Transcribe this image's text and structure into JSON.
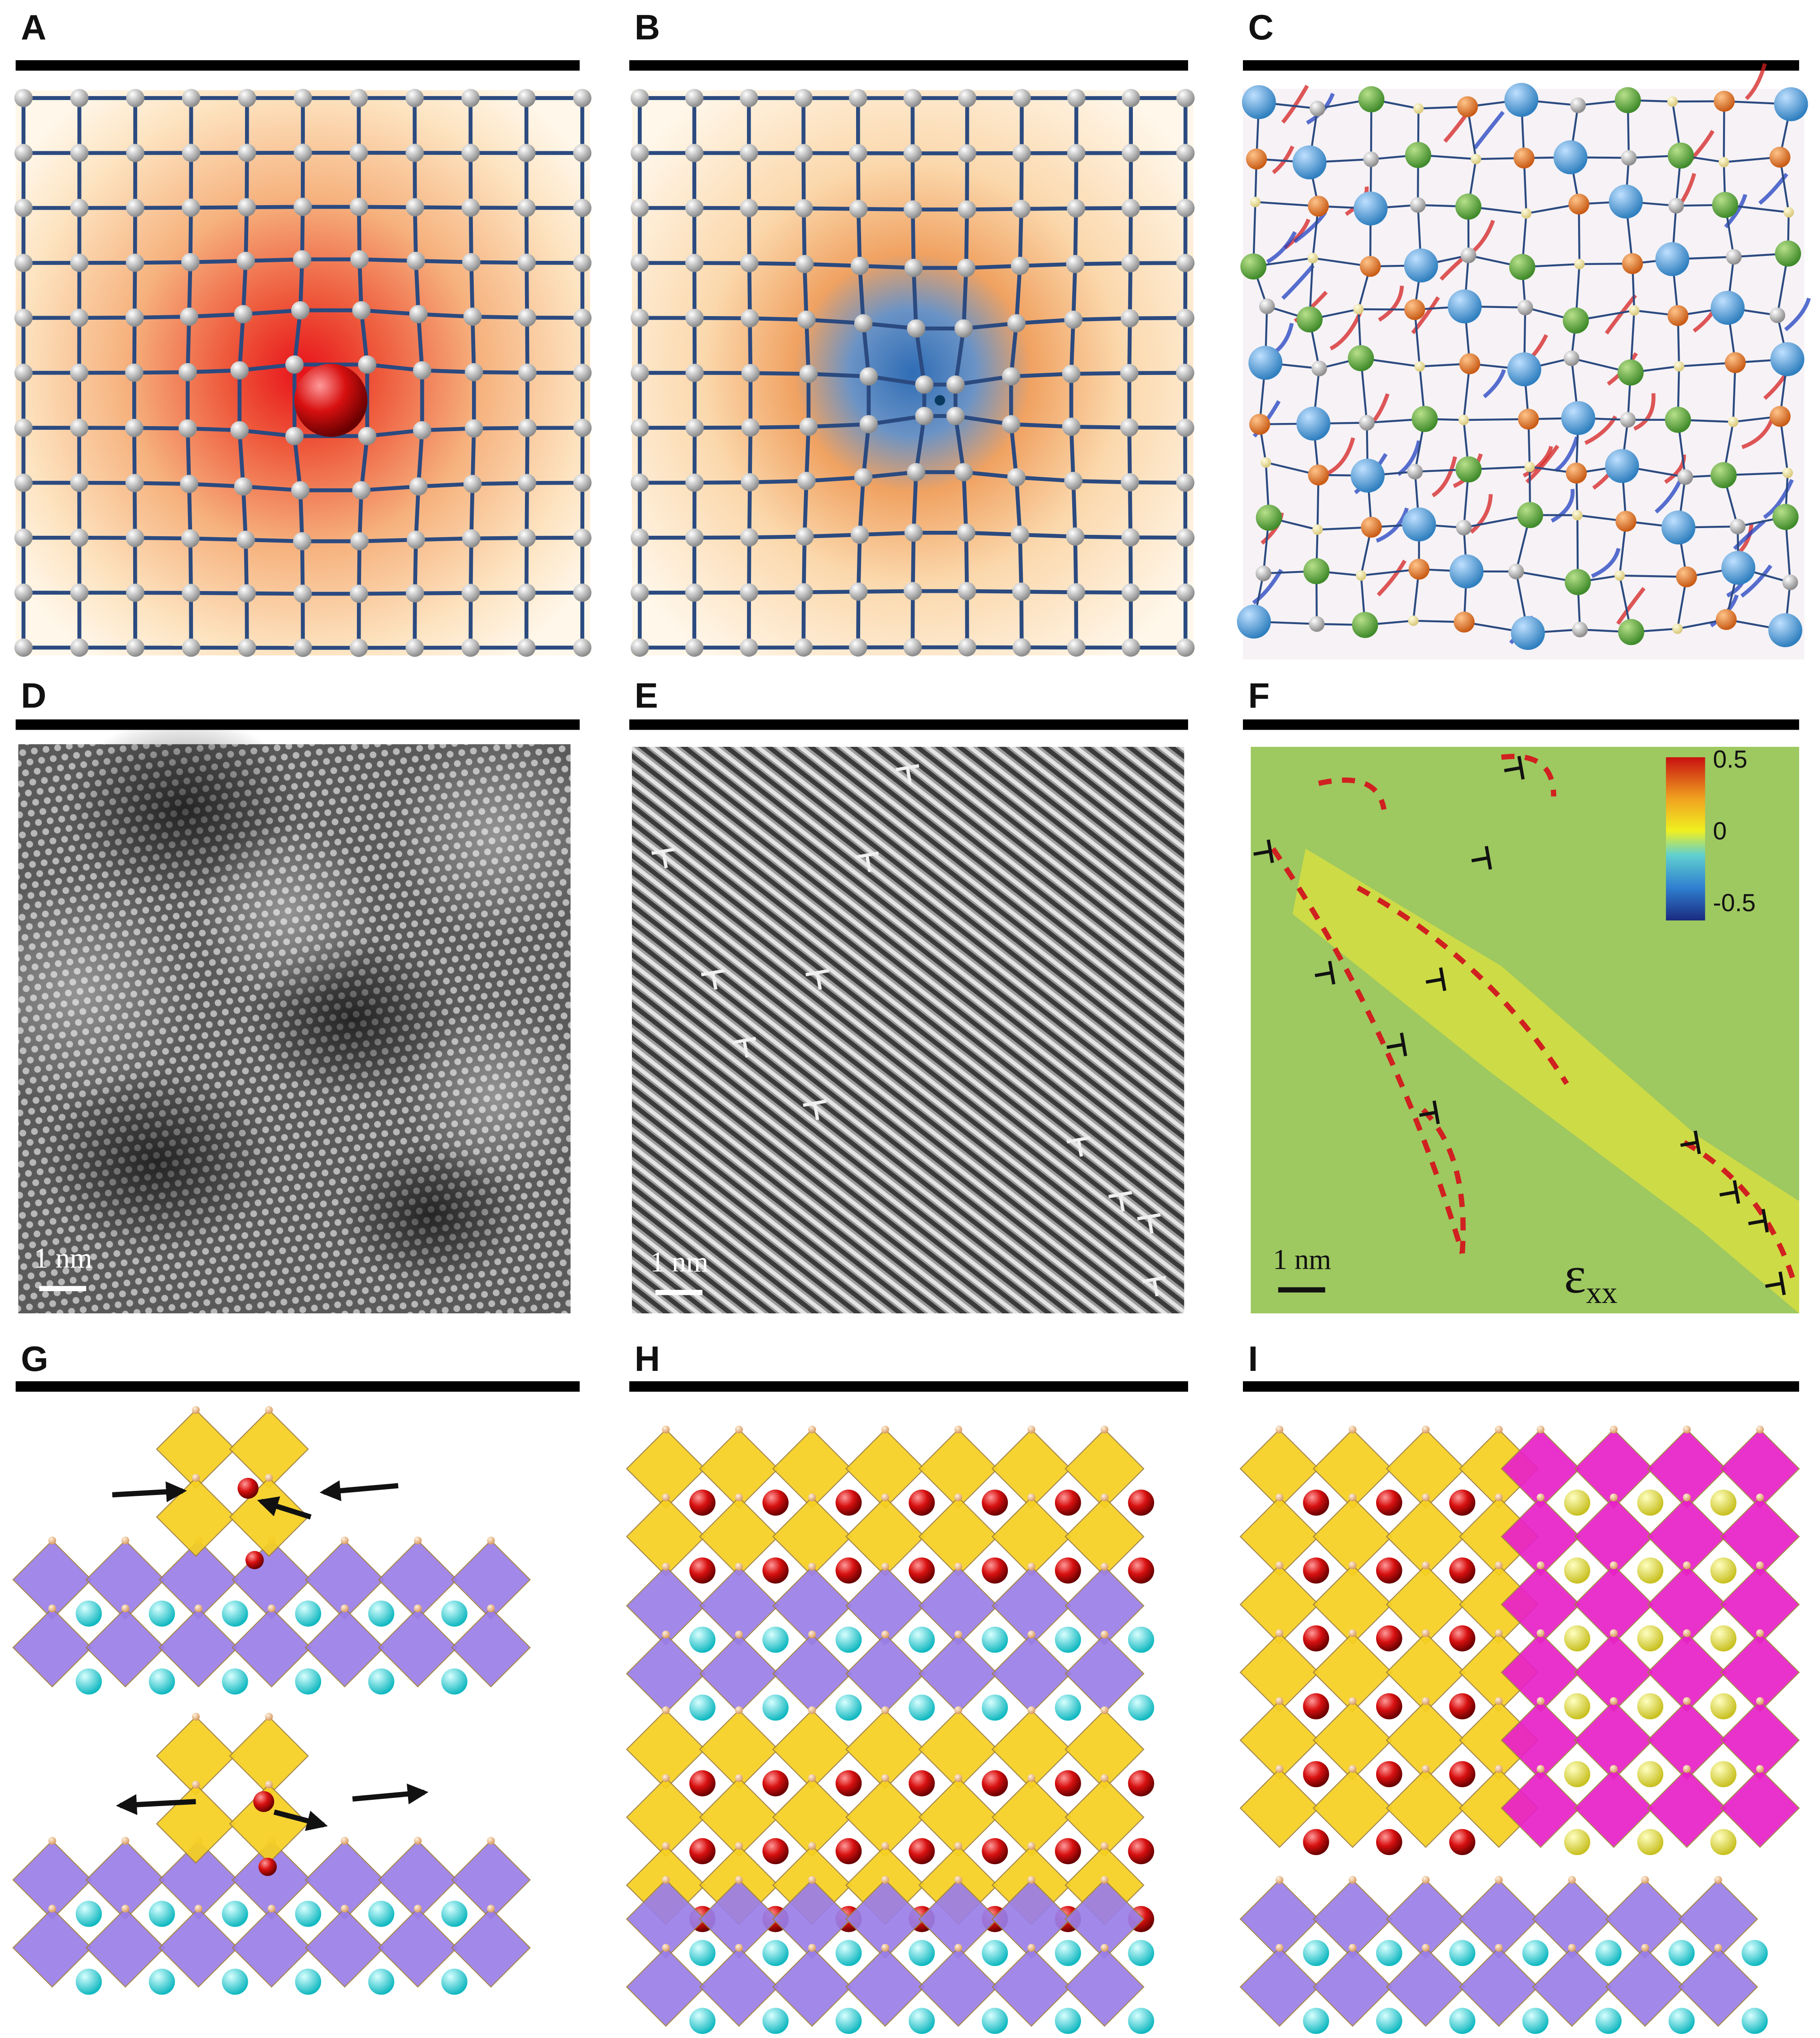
{
  "panels": [
    {
      "label": "A"
    },
    {
      "label": "B"
    },
    {
      "label": "C"
    },
    {
      "label": "D",
      "scale": "1 nm"
    },
    {
      "label": "E",
      "scale": "1 nm"
    },
    {
      "label": "F",
      "scale": "1 nm",
      "colorbar_ticks": [
        0.5,
        0,
        -0.5
      ],
      "symbol": "ε",
      "subscript": "xx"
    },
    {
      "label": "G"
    },
    {
      "label": "H"
    },
    {
      "label": "I"
    }
  ]
}
